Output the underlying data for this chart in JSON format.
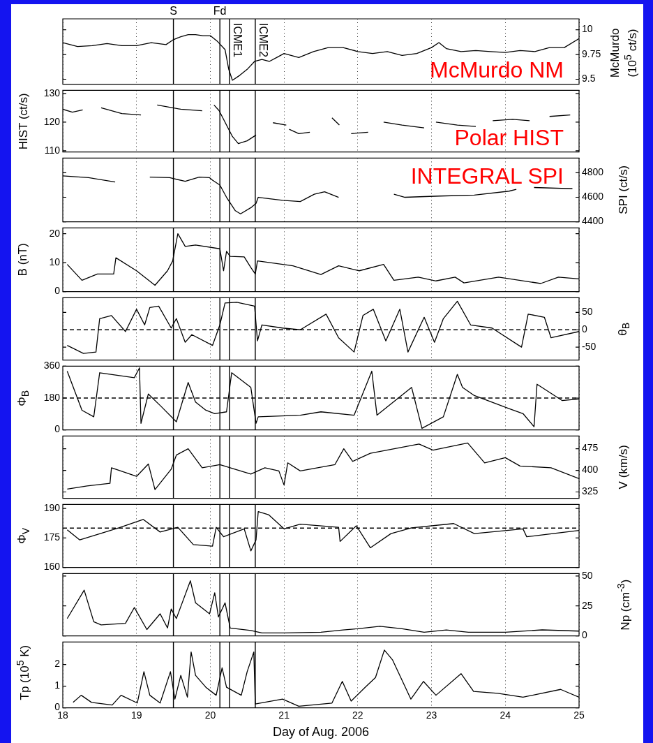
{
  "chart_data": [
    {
      "type": "line",
      "ylabel": "McMurdo (10$^{5}$ ct/s)",
      "xlim": [
        18,
        25
      ],
      "xticks": [
        18,
        19,
        20,
        21,
        22,
        23,
        24,
        25
      ],
      "ylim": [
        9.45,
        10.11
      ],
      "yticks": [
        9.5,
        9.75,
        10
      ],
      "grid": "x",
      "tick_labels": "y",
      "marker": "none",
      "annotations": [
        "McMurdo NM"
      ],
      "ref_lines": [
        {
          "axis": "x",
          "value": 19.5,
          "label": "S"
        },
        {
          "axis": "x",
          "value": 20.13,
          "label": "Fd"
        },
        {
          "axis": "x",
          "value": 20.26,
          "label": "ICME1"
        },
        {
          "axis": "x",
          "value": 20.61,
          "label": "ICME2"
        }
      ],
      "series": [
        {
          "color": "#000000",
          "x": [
            18.0,
            18.2,
            18.4,
            18.6,
            18.8,
            19.0,
            19.2,
            19.4,
            19.5,
            19.6,
            19.7,
            19.8,
            19.9,
            20.0,
            20.1,
            20.2,
            20.25,
            20.3,
            20.4,
            20.5,
            20.6,
            20.7,
            20.8,
            20.9,
            21.0,
            21.2,
            21.4,
            21.6,
            21.8,
            22.0,
            22.2,
            22.4,
            22.6,
            22.8,
            23.0,
            23.1,
            23.2,
            23.4,
            23.6,
            23.8,
            24.0,
            24.2,
            24.4,
            24.6,
            24.8,
            25.0
          ],
          "values": [
            9.87,
            9.83,
            9.84,
            9.86,
            9.84,
            9.84,
            9.87,
            9.85,
            9.9,
            9.93,
            9.95,
            9.95,
            9.94,
            9.94,
            9.88,
            9.8,
            9.6,
            9.49,
            9.54,
            9.6,
            9.68,
            9.7,
            9.68,
            9.72,
            9.76,
            9.72,
            9.78,
            9.82,
            9.82,
            9.78,
            9.76,
            9.78,
            9.74,
            9.76,
            9.82,
            9.87,
            9.81,
            9.78,
            9.79,
            9.78,
            9.77,
            9.79,
            9.78,
            9.82,
            9.82,
            9.91
          ]
        }
      ]
    },
    {
      "type": "line",
      "ylabel": "HIST (ct/s)",
      "xlim": [
        18,
        25
      ],
      "xticks": [
        18,
        19,
        20,
        21,
        22,
        23,
        24,
        25
      ],
      "ylim": [
        109.6,
        131.1
      ],
      "yticks": [
        110,
        120,
        130
      ],
      "grid": "x",
      "tick_labels": "y",
      "marker": "none",
      "annotations": [
        "Polar HIST"
      ],
      "ref_lines": [
        {
          "axis": "x",
          "value": 19.5
        },
        {
          "axis": "x",
          "value": 20.13
        },
        {
          "axis": "x",
          "value": 20.26
        },
        {
          "axis": "x",
          "value": 20.61
        }
      ],
      "series": [
        {
          "color": "#000000",
          "x": [
            18.0,
            18.13,
            18.27,
            18.4,
            18.52,
            18.8,
            19.06,
            19.17,
            19.28,
            19.6,
            19.89,
            19.97,
            20.05,
            20.12,
            20.2,
            20.3,
            20.38,
            20.5,
            20.62,
            20.73,
            20.85,
            21.03,
            21.05,
            21.07,
            21.2,
            21.35,
            21.5,
            21.65,
            21.75,
            21.83,
            21.91,
            22.14,
            22.25,
            22.35,
            22.6,
            22.9,
            22.98,
            23.06,
            23.35,
            23.6,
            23.72,
            23.83,
            24.1,
            24.33,
            24.46,
            24.6,
            24.88
          ],
          "values": [
            124.5,
            123.5,
            124.3,
            null,
            125,
            123,
            122.5,
            null,
            126,
            124.5,
            124,
            null,
            126,
            124,
            120,
            115,
            112.5,
            113.5,
            115.5,
            null,
            119.8,
            119,
            null,
            117.5,
            116,
            116.5,
            null,
            121.5,
            119,
            null,
            116,
            116.5,
            null,
            120,
            119,
            118,
            null,
            120,
            119,
            118.5,
            null,
            120.5,
            121,
            120.5,
            null,
            122,
            122.5
          ]
        }
      ]
    },
    {
      "type": "line",
      "ylabel": "SPI (ct/s)",
      "xlim": [
        18,
        25
      ],
      "xticks": [
        18,
        19,
        20,
        21,
        22,
        23,
        24,
        25
      ],
      "ylim": [
        4400,
        4920
      ],
      "yticks": [
        4400,
        4600,
        4800
      ],
      "grid": "x",
      "tick_labels": "y",
      "marker": "none",
      "annotations": [
        "INTEGRAL SPI"
      ],
      "ref_lines": [
        {
          "axis": "x",
          "value": 19.5
        },
        {
          "axis": "x",
          "value": 20.13
        },
        {
          "axis": "x",
          "value": 20.26
        },
        {
          "axis": "x",
          "value": 20.61
        }
      ],
      "series": [
        {
          "color": "#000000",
          "x": [
            18.0,
            18.35,
            18.71,
            18.95,
            19.18,
            19.45,
            19.66,
            19.85,
            19.99,
            20.03,
            20.13,
            20.22,
            20.34,
            20.41,
            20.55,
            20.62,
            20.65,
            20.98,
            21.22,
            21.41,
            21.55,
            21.74,
            22.1,
            22.49,
            22.64,
            23.11,
            23.58,
            24.05,
            24.15,
            24.27,
            24.39,
            24.91
          ],
          "values": [
            4775,
            4760,
            4725,
            null,
            4765,
            4760,
            4730,
            4765,
            4760,
            4740,
            4700,
            4600,
            4490,
            4465,
            4515,
            4550,
            4600,
            4575,
            4565,
            4625,
            4645,
            4600,
            null,
            4625,
            4600,
            4610,
            4618,
            4650,
            4665,
            null,
            4680,
            4670
          ]
        }
      ]
    },
    {
      "type": "line",
      "ylabel": "B (nT)",
      "xlim": [
        18,
        25
      ],
      "xticks": [
        18,
        19,
        20,
        21,
        22,
        23,
        24,
        25
      ],
      "ylim": [
        0,
        22
      ],
      "yticks": [
        0,
        10,
        20
      ],
      "grid": "x",
      "tick_labels": "y",
      "marker": "none",
      "ref_lines": [
        {
          "axis": "x",
          "value": 19.5
        },
        {
          "axis": "x",
          "value": 20.13
        },
        {
          "axis": "x",
          "value": 20.26
        },
        {
          "axis": "x",
          "value": 20.61
        }
      ],
      "series": [
        {
          "color": "#000000",
          "x": [
            18.06,
            18.26,
            18.47,
            18.69,
            18.72,
            19.0,
            19.25,
            19.42,
            19.49,
            19.56,
            19.66,
            19.8,
            20.13,
            20.18,
            20.22,
            20.27,
            20.46,
            20.55,
            20.61,
            20.64,
            21.12,
            21.5,
            21.74,
            22.02,
            22.35,
            22.49,
            22.82,
            23.06,
            23.32,
            23.44,
            23.91,
            24.48,
            24.72,
            25.0
          ],
          "values": [
            9.4,
            3.9,
            6.1,
            6.1,
            11.7,
            7.2,
            2.2,
            7.2,
            10.6,
            20,
            15.6,
            16.1,
            14.8,
            7.2,
            13.9,
            12.2,
            12,
            8.3,
            6.1,
            10.6,
            8.9,
            5.9,
            8.9,
            7.2,
            9.4,
            3.9,
            5,
            3.7,
            5,
            3,
            5,
            2.8,
            5,
            4.4
          ]
        }
      ]
    },
    {
      "type": "line",
      "ylabel": "θ$_{B}$",
      "xlim": [
        18,
        25
      ],
      "xticks": [
        18,
        19,
        20,
        21,
        22,
        23,
        24,
        25
      ],
      "ylim": [
        -87,
        92
      ],
      "yticks": [
        -50,
        0,
        50
      ],
      "grid": "x",
      "tick_labels": "y",
      "marker": "none",
      "ref_lines": [
        {
          "axis": "x",
          "value": 19.5
        },
        {
          "axis": "x",
          "value": 20.13
        },
        {
          "axis": "x",
          "value": 20.26
        },
        {
          "axis": "x",
          "value": 20.61
        },
        {
          "axis": "y",
          "value": 0,
          "line_style": "dashed"
        }
      ],
      "series": [
        {
          "color": "#000000",
          "x": [
            18.06,
            18.28,
            18.45,
            18.5,
            18.66,
            18.85,
            19.0,
            19.11,
            19.18,
            19.3,
            19.47,
            19.54,
            19.66,
            19.75,
            20.03,
            20.13,
            20.2,
            20.36,
            20.6,
            20.64,
            20.7,
            20.98,
            21.22,
            21.57,
            21.74,
            21.95,
            22.07,
            22.21,
            22.38,
            22.57,
            22.68,
            22.9,
            23.04,
            23.16,
            23.35,
            23.53,
            23.82,
            24.22,
            24.31,
            24.53,
            24.62,
            25.0
          ],
          "values": [
            -45,
            -68,
            -64,
            32,
            41,
            -5,
            59,
            14,
            64,
            68,
            5,
            32,
            -36,
            -14,
            -45,
            14,
            77,
            79,
            68,
            -32,
            14,
            5,
            0,
            45,
            -23,
            -64,
            41,
            59,
            -32,
            59,
            -64,
            36,
            -36,
            32,
            82,
            14,
            5,
            -50,
            45,
            36,
            -23,
            -5
          ]
        }
      ]
    },
    {
      "type": "line",
      "ylabel": "Φ$_{B}$",
      "xlim": [
        18,
        25
      ],
      "xticks": [
        18,
        19,
        20,
        21,
        22,
        23,
        24,
        25
      ],
      "ylim": [
        0,
        360
      ],
      "yticks": [
        0,
        180,
        360
      ],
      "grid": "x",
      "tick_labels": "y",
      "marker": "none",
      "ref_lines": [
        {
          "axis": "x",
          "value": 19.5
        },
        {
          "axis": "x",
          "value": 20.13
        },
        {
          "axis": "x",
          "value": 20.26
        },
        {
          "axis": "x",
          "value": 20.61
        },
        {
          "axis": "y",
          "value": 180,
          "line_style": "dashed"
        }
      ],
      "series": [
        {
          "color": "#000000",
          "x": [
            18.06,
            18.26,
            18.42,
            18.5,
            18.97,
            19.04,
            19.06,
            19.16,
            19.32,
            19.54,
            19.7,
            19.8,
            19.94,
            20.06,
            20.22,
            20.29,
            20.55,
            20.62,
            20.65,
            21.22,
            21.5,
            21.95,
            22.19,
            22.26,
            22.73,
            22.87,
            23.16,
            23.35,
            23.42,
            23.58,
            24.05,
            24.24,
            24.39,
            24.43,
            24.77,
            25.0
          ],
          "values": [
            332,
            111,
            74,
            323,
            295,
            351,
            37,
            203,
            138,
            46,
            268,
            157,
            111,
            92,
            102,
            323,
            240,
            37,
            74,
            83,
            102,
            83,
            332,
            83,
            240,
            9,
            74,
            314,
            240,
            194,
            120,
            92,
            18,
            258,
            166,
            175
          ]
        }
      ]
    },
    {
      "type": "line",
      "ylabel": "V (km/s)",
      "xlim": [
        18,
        25
      ],
      "xticks": [
        18,
        19,
        20,
        21,
        22,
        23,
        24,
        25
      ],
      "ylim": [
        303,
        519
      ],
      "yticks": [
        325,
        400,
        475
      ],
      "grid": "x",
      "tick_labels": "y",
      "marker": "none",
      "ref_lines": [
        {
          "axis": "x",
          "value": 19.5
        },
        {
          "axis": "x",
          "value": 20.13
        },
        {
          "axis": "x",
          "value": 20.26
        },
        {
          "axis": "x",
          "value": 20.61
        }
      ],
      "series": [
        {
          "color": "#000000",
          "x": [
            18.06,
            18.33,
            18.64,
            18.66,
            19.0,
            19.16,
            19.25,
            19.47,
            19.54,
            19.7,
            19.89,
            20.13,
            20.55,
            20.74,
            20.93,
            21.0,
            21.05,
            21.22,
            21.69,
            21.81,
            21.93,
            22.17,
            22.83,
            23.02,
            23.49,
            23.72,
            24.0,
            24.2,
            24.62,
            25.0
          ],
          "values": [
            335,
            346,
            355,
            409,
            379,
            422,
            333,
            404,
            453,
            475,
            409,
            420,
            387,
            409,
            398,
            349,
            426,
            398,
            420,
            475,
            431,
            459,
            491,
            470,
            495,
            426,
            444,
            415,
            409,
            371
          ]
        }
      ]
    },
    {
      "type": "line",
      "ylabel": "Φ$_{V}$",
      "xlim": [
        18,
        25
      ],
      "xticks": [
        18,
        19,
        20,
        21,
        22,
        23,
        24,
        25
      ],
      "ylim": [
        160,
        192
      ],
      "yticks": [
        160,
        175,
        190
      ],
      "grid": "x",
      "tick_labels": "y",
      "marker": "none",
      "ref_lines": [
        {
          "axis": "x",
          "value": 19.5
        },
        {
          "axis": "x",
          "value": 20.13
        },
        {
          "axis": "x",
          "value": 20.26
        },
        {
          "axis": "x",
          "value": 20.61
        },
        {
          "axis": "y",
          "value": 180,
          "line_style": "dashed"
        }
      ],
      "series": [
        {
          "color": "#000000",
          "x": [
            18.06,
            18.23,
            18.76,
            19.09,
            19.32,
            19.56,
            19.77,
            20.03,
            20.08,
            20.18,
            20.46,
            20.55,
            20.62,
            20.65,
            20.79,
            21.0,
            21.22,
            21.74,
            21.76,
            21.98,
            22.17,
            22.45,
            22.73,
            23.3,
            23.58,
            24.24,
            24.29,
            25.0
          ],
          "values": [
            179.1,
            174,
            180.1,
            184.4,
            178,
            180.4,
            171.6,
            170.8,
            180.4,
            175.6,
            179.6,
            168.4,
            174,
            188.4,
            186.8,
            179.6,
            182,
            180.4,
            173.2,
            181.2,
            170,
            177.2,
            180.1,
            182.3,
            177.2,
            179.6,
            175.6,
            178.8
          ]
        }
      ]
    },
    {
      "type": "line",
      "ylabel": "Np (cm$^{-3}$)",
      "xlim": [
        18,
        25
      ],
      "xticks": [
        18,
        19,
        20,
        21,
        22,
        23,
        24,
        25
      ],
      "ylim": [
        0,
        52
      ],
      "yticks": [
        0,
        25,
        50
      ],
      "grid": "x",
      "tick_labels": "y",
      "marker": "none",
      "ref_lines": [
        {
          "axis": "x",
          "value": 19.5
        },
        {
          "axis": "x",
          "value": 20.13
        },
        {
          "axis": "x",
          "value": 20.26
        },
        {
          "axis": "x",
          "value": 20.61
        }
      ],
      "series": [
        {
          "color": "#000000",
          "x": [
            18.06,
            18.29,
            18.42,
            18.52,
            18.85,
            18.97,
            19.14,
            19.32,
            19.42,
            19.47,
            19.54,
            19.73,
            19.8,
            19.99,
            20.06,
            20.11,
            20.2,
            20.27,
            20.55,
            20.7,
            21.0,
            21.5,
            21.8,
            22.0,
            22.3,
            22.6,
            22.9,
            23.2,
            23.5,
            24.0,
            24.5,
            25.0
          ],
          "values": [
            14.5,
            38.2,
            11.8,
            9.2,
            10.5,
            23.7,
            5.3,
            18.4,
            6.6,
            22.4,
            14.5,
            46,
            27.6,
            18.4,
            36,
            15.8,
            27.6,
            6.6,
            4.5,
            2.5,
            2.5,
            3,
            5,
            6,
            8,
            6,
            3,
            5,
            3,
            3,
            5,
            4
          ]
        }
      ]
    },
    {
      "type": "line",
      "ylabel": "Tp (10$^{5}$ K)",
      "xlabel": "Day of Aug. 2006",
      "xlim": [
        18,
        25
      ],
      "xticks": [
        18,
        19,
        20,
        21,
        22,
        23,
        24,
        25
      ],
      "ylim": [
        0,
        3.04
      ],
      "yticks": [
        0,
        1,
        2
      ],
      "grid": "x",
      "marker": "none",
      "ref_lines": [
        {
          "axis": "x",
          "value": 19.5
        },
        {
          "axis": "x",
          "value": 20.13
        },
        {
          "axis": "x",
          "value": 20.26
        },
        {
          "axis": "x",
          "value": 20.61
        }
      ],
      "series": [
        {
          "color": "#000000",
          "x": [
            18.14,
            18.25,
            18.39,
            18.67,
            18.79,
            19.01,
            19.1,
            19.18,
            19.32,
            19.46,
            19.52,
            19.6,
            19.69,
            19.74,
            19.8,
            19.94,
            20.08,
            20.16,
            20.22,
            20.42,
            20.5,
            20.59,
            20.61,
            20.98,
            21.2,
            21.65,
            21.79,
            21.91,
            22.1,
            22.24,
            22.36,
            22.47,
            22.72,
            22.89,
            23.06,
            23.4,
            23.57,
            23.9,
            24.24,
            24.75,
            25.0
          ],
          "values": [
            0.25,
            0.58,
            0.25,
            0.13,
            0.58,
            0.22,
            1.67,
            0.58,
            0.22,
            1.67,
            0.4,
            1.5,
            0.49,
            2.58,
            1.5,
            0.95,
            0.58,
            1.85,
            0.95,
            0.58,
            1.67,
            2.58,
            0.18,
            0.4,
            0.07,
            0.22,
            1.22,
            0.31,
            0.95,
            1.4,
            2.67,
            2.22,
            0.4,
            1.22,
            0.58,
            1.58,
            0.76,
            0.67,
            0.49,
            0.85,
            0.49
          ]
        }
      ]
    }
  ]
}
